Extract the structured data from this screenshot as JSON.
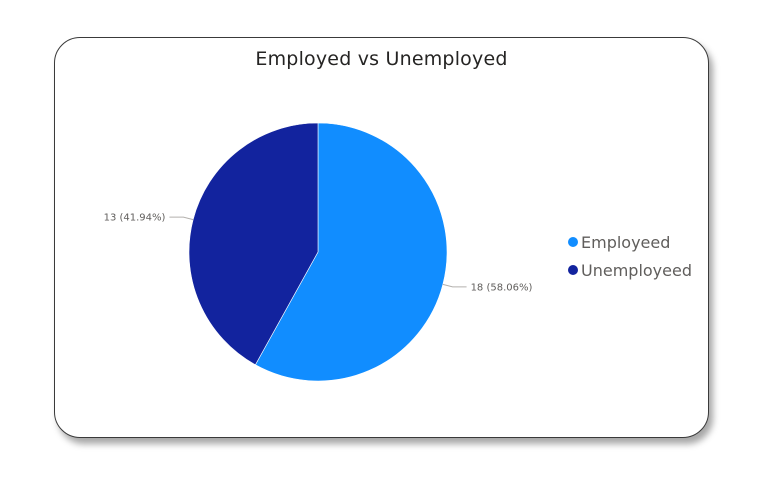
{
  "chart_data": {
    "type": "pie",
    "title": "Employed vs Unemployed",
    "categories": [
      "Employeed",
      "Unemployeed"
    ],
    "values": [
      18,
      13
    ],
    "percent_labels": [
      "58.06%",
      "41.94%"
    ],
    "data_labels": [
      "18 (58.06%)",
      "13 (41.94%)"
    ],
    "colors": [
      "#118dff",
      "#12239e"
    ],
    "legend_position": "right"
  },
  "legend": {
    "items": [
      {
        "label": "Employeed",
        "color": "#118dff"
      },
      {
        "label": "Unemployeed",
        "color": "#12239e"
      }
    ]
  }
}
